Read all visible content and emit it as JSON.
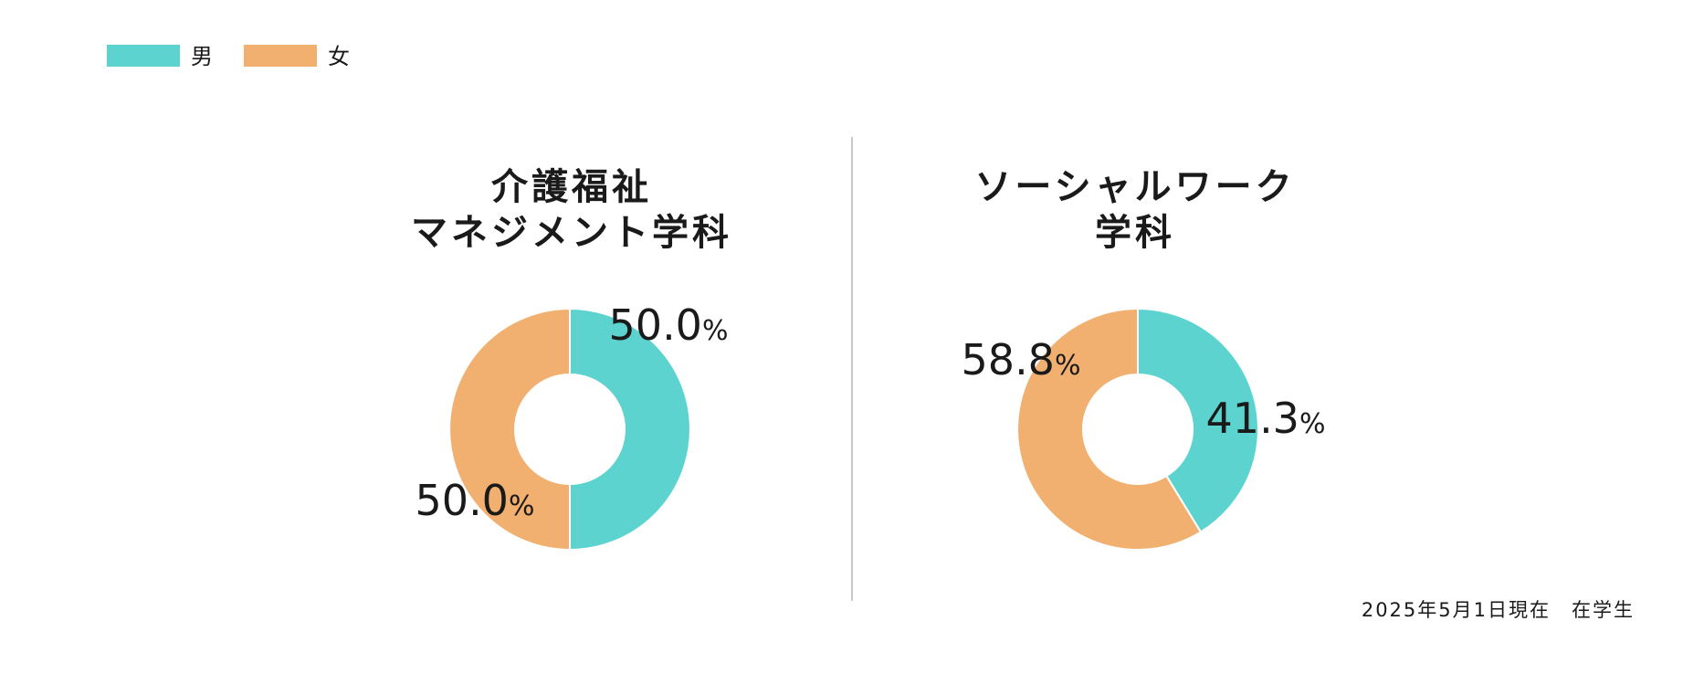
{
  "chart_data": {
    "type": "pie",
    "variant": "donut",
    "legend": {
      "placement": "top-left",
      "entries": [
        {
          "name": "男",
          "color": "#5dd3cf"
        },
        {
          "name": "女",
          "color": "#f2b070"
        }
      ]
    },
    "charts": [
      {
        "title_lines": [
          "介護福祉",
          "マネジメント学科"
        ],
        "slices": [
          {
            "series": "男",
            "value": 50.0,
            "label": "50.0",
            "unit": "%"
          },
          {
            "series": "女",
            "value": 50.0,
            "label": "50.0",
            "unit": "%"
          }
        ]
      },
      {
        "title_lines": [
          "ソーシャルワーク",
          "学科"
        ],
        "slices": [
          {
            "series": "男",
            "value": 41.3,
            "label": "41.3",
            "unit": "%"
          },
          {
            "series": "女",
            "value": 58.8,
            "label": "58.8",
            "unit": "%"
          }
        ]
      }
    ],
    "footnote": "2025年5月1日現在　在学生"
  }
}
